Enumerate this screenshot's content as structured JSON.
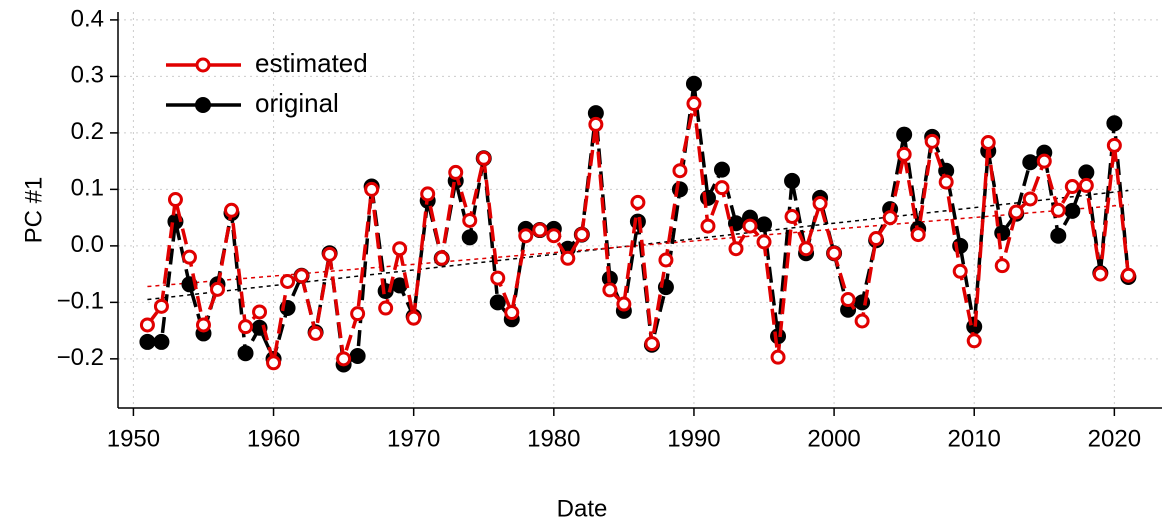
{
  "chart_data": {
    "type": "line",
    "x_label": "Date",
    "y_label": "PC #1",
    "x": [
      1951,
      1952,
      1953,
      1954,
      1955,
      1956,
      1957,
      1958,
      1959,
      1960,
      1961,
      1962,
      1963,
      1964,
      1965,
      1966,
      1967,
      1968,
      1969,
      1970,
      1971,
      1972,
      1973,
      1974,
      1975,
      1976,
      1977,
      1978,
      1979,
      1980,
      1981,
      1982,
      1983,
      1984,
      1985,
      1986,
      1987,
      1988,
      1989,
      1990,
      1991,
      1992,
      1993,
      1994,
      1995,
      1996,
      1997,
      1998,
      1999,
      2000,
      2001,
      2002,
      2003,
      2004,
      2005,
      2006,
      2007,
      2008,
      2009,
      2010,
      2011,
      2012,
      2013,
      2014,
      2015,
      2016,
      2017,
      2018,
      2019,
      2020,
      2021
    ],
    "series": [
      {
        "name": "original",
        "color": "#000000",
        "marker": "filled",
        "values": [
          -0.17,
          -0.17,
          0.043,
          -0.068,
          -0.155,
          -0.068,
          0.058,
          -0.19,
          -0.145,
          -0.2,
          -0.11,
          -0.053,
          -0.153,
          -0.013,
          -0.21,
          -0.195,
          0.105,
          -0.08,
          -0.07,
          -0.125,
          0.08,
          -0.022,
          0.115,
          0.015,
          0.155,
          -0.1,
          -0.13,
          0.03,
          0.028,
          0.03,
          -0.005,
          0.02,
          0.235,
          -0.058,
          -0.115,
          0.043,
          -0.175,
          -0.073,
          0.1,
          0.287,
          0.085,
          0.135,
          0.04,
          0.05,
          0.038,
          -0.16,
          0.115,
          -0.013,
          0.085,
          -0.013,
          -0.113,
          -0.1,
          0.01,
          0.065,
          0.197,
          0.03,
          0.193,
          0.133,
          0.0,
          -0.143,
          0.168,
          0.023,
          0.057,
          0.148,
          0.165,
          0.018,
          0.062,
          0.13,
          -0.048,
          0.217,
          -0.055
        ],
        "trend": {
          "x": [
            1951,
            2021
          ],
          "values": [
            -0.095,
            0.098
          ]
        }
      },
      {
        "name": "estimated",
        "color": "#e00000",
        "marker": "open",
        "values": [
          -0.14,
          -0.107,
          0.082,
          -0.02,
          -0.14,
          -0.077,
          0.063,
          -0.143,
          -0.117,
          -0.207,
          -0.063,
          -0.053,
          -0.155,
          -0.015,
          -0.2,
          -0.12,
          0.1,
          -0.11,
          -0.005,
          -0.128,
          0.092,
          -0.022,
          0.13,
          0.045,
          0.155,
          -0.057,
          -0.118,
          0.018,
          0.028,
          0.018,
          -0.022,
          0.02,
          0.215,
          -0.078,
          -0.103,
          0.077,
          -0.173,
          -0.025,
          0.133,
          0.252,
          0.035,
          0.103,
          -0.005,
          0.035,
          0.007,
          -0.197,
          0.052,
          -0.005,
          0.075,
          -0.013,
          -0.095,
          -0.133,
          0.013,
          0.05,
          0.162,
          0.02,
          0.185,
          0.113,
          -0.045,
          -0.168,
          0.183,
          -0.035,
          0.06,
          0.083,
          0.15,
          0.063,
          0.105,
          0.107,
          -0.05,
          0.178,
          -0.052
        ],
        "trend": {
          "x": [
            1951,
            2021
          ],
          "values": [
            -0.072,
            0.073
          ]
        }
      }
    ],
    "xlim": [
      1948.9,
      2023.4
    ],
    "ylim": [
      -0.287,
      0.414
    ],
    "xticks": [
      1950,
      1960,
      1970,
      1980,
      1990,
      2000,
      2010,
      2020
    ],
    "yticks": [
      {
        "value": -0.2,
        "label": "−0.2"
      },
      {
        "value": -0.1,
        "label": "−0.1"
      },
      {
        "value": 0,
        "label": "0.0"
      },
      0.1,
      0.2,
      0.3,
      0.4
    ],
    "grid": true,
    "legend": "top-left"
  }
}
